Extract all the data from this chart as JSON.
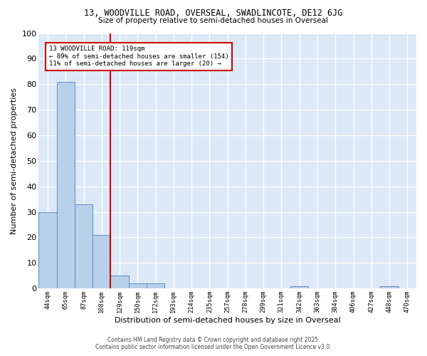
{
  "title_line1": "13, WOODVILLE ROAD, OVERSEAL, SWADLINCOTE, DE12 6JG",
  "title_line2": "Size of property relative to semi-detached houses in Overseal",
  "xlabel": "Distribution of semi-detached houses by size in Overseal",
  "ylabel": "Number of semi-detached properties",
  "footer_line1": "Contains HM Land Registry data © Crown copyright and database right 2025.",
  "footer_line2": "Contains public sector information licensed under the Open Government Licence v3.0.",
  "annotation_title": "13 WOODVILLE ROAD: 119sqm",
  "annotation_line1": "← 89% of semi-detached houses are smaller (154)",
  "annotation_line2": "11% of semi-detached houses are larger (20) →",
  "bins": [
    "44sqm",
    "65sqm",
    "87sqm",
    "108sqm",
    "129sqm",
    "150sqm",
    "172sqm",
    "193sqm",
    "214sqm",
    "235sqm",
    "257sqm",
    "278sqm",
    "299sqm",
    "321sqm",
    "342sqm",
    "363sqm",
    "384sqm",
    "406sqm",
    "427sqm",
    "448sqm",
    "470sqm"
  ],
  "counts": [
    30,
    81,
    33,
    21,
    5,
    2,
    2,
    0,
    0,
    0,
    0,
    0,
    0,
    0,
    1,
    0,
    0,
    0,
    0,
    1,
    0
  ],
  "bar_color": "#b8d0ea",
  "bar_edge_color": "#5b8ec4",
  "vline_color": "#cc0000",
  "vline_index": 3.5,
  "bg_color": "#dce8f5",
  "grid_color": "#ffffff",
  "ylim": [
    0,
    100
  ],
  "yticks": [
    0,
    10,
    20,
    30,
    40,
    50,
    60,
    70,
    80,
    90,
    100
  ],
  "annotation_box_color": "#cc0000"
}
